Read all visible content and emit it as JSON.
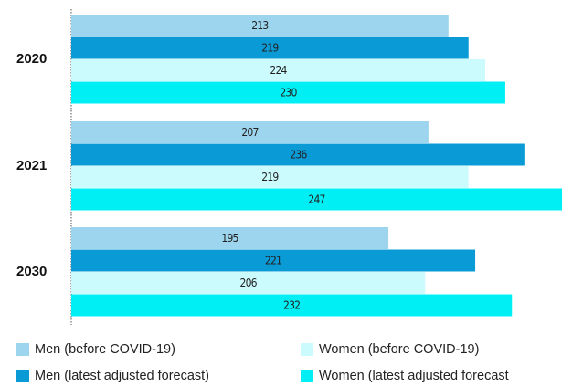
{
  "chart_data": {
    "type": "bar",
    "orientation": "horizontal",
    "categories": [
      "2020",
      "2021",
      "2030"
    ],
    "xlim": [
      100,
      250
    ],
    "series": [
      {
        "name": "Men (before COVID-19)",
        "color": "#9dd5ee",
        "values": [
          213,
          207,
          195
        ]
      },
      {
        "name": "Men (latest adjusted forecast)",
        "color": "#0a9bd7",
        "values": [
          219,
          236,
          221
        ]
      },
      {
        "name": "Women (before COVID-19)",
        "color": "#ccfbfe",
        "values": [
          224,
          219,
          206
        ]
      },
      {
        "name": "Women (latest adjusted forecast",
        "color": "#00eff4",
        "values": [
          230,
          247,
          232
        ]
      }
    ]
  }
}
